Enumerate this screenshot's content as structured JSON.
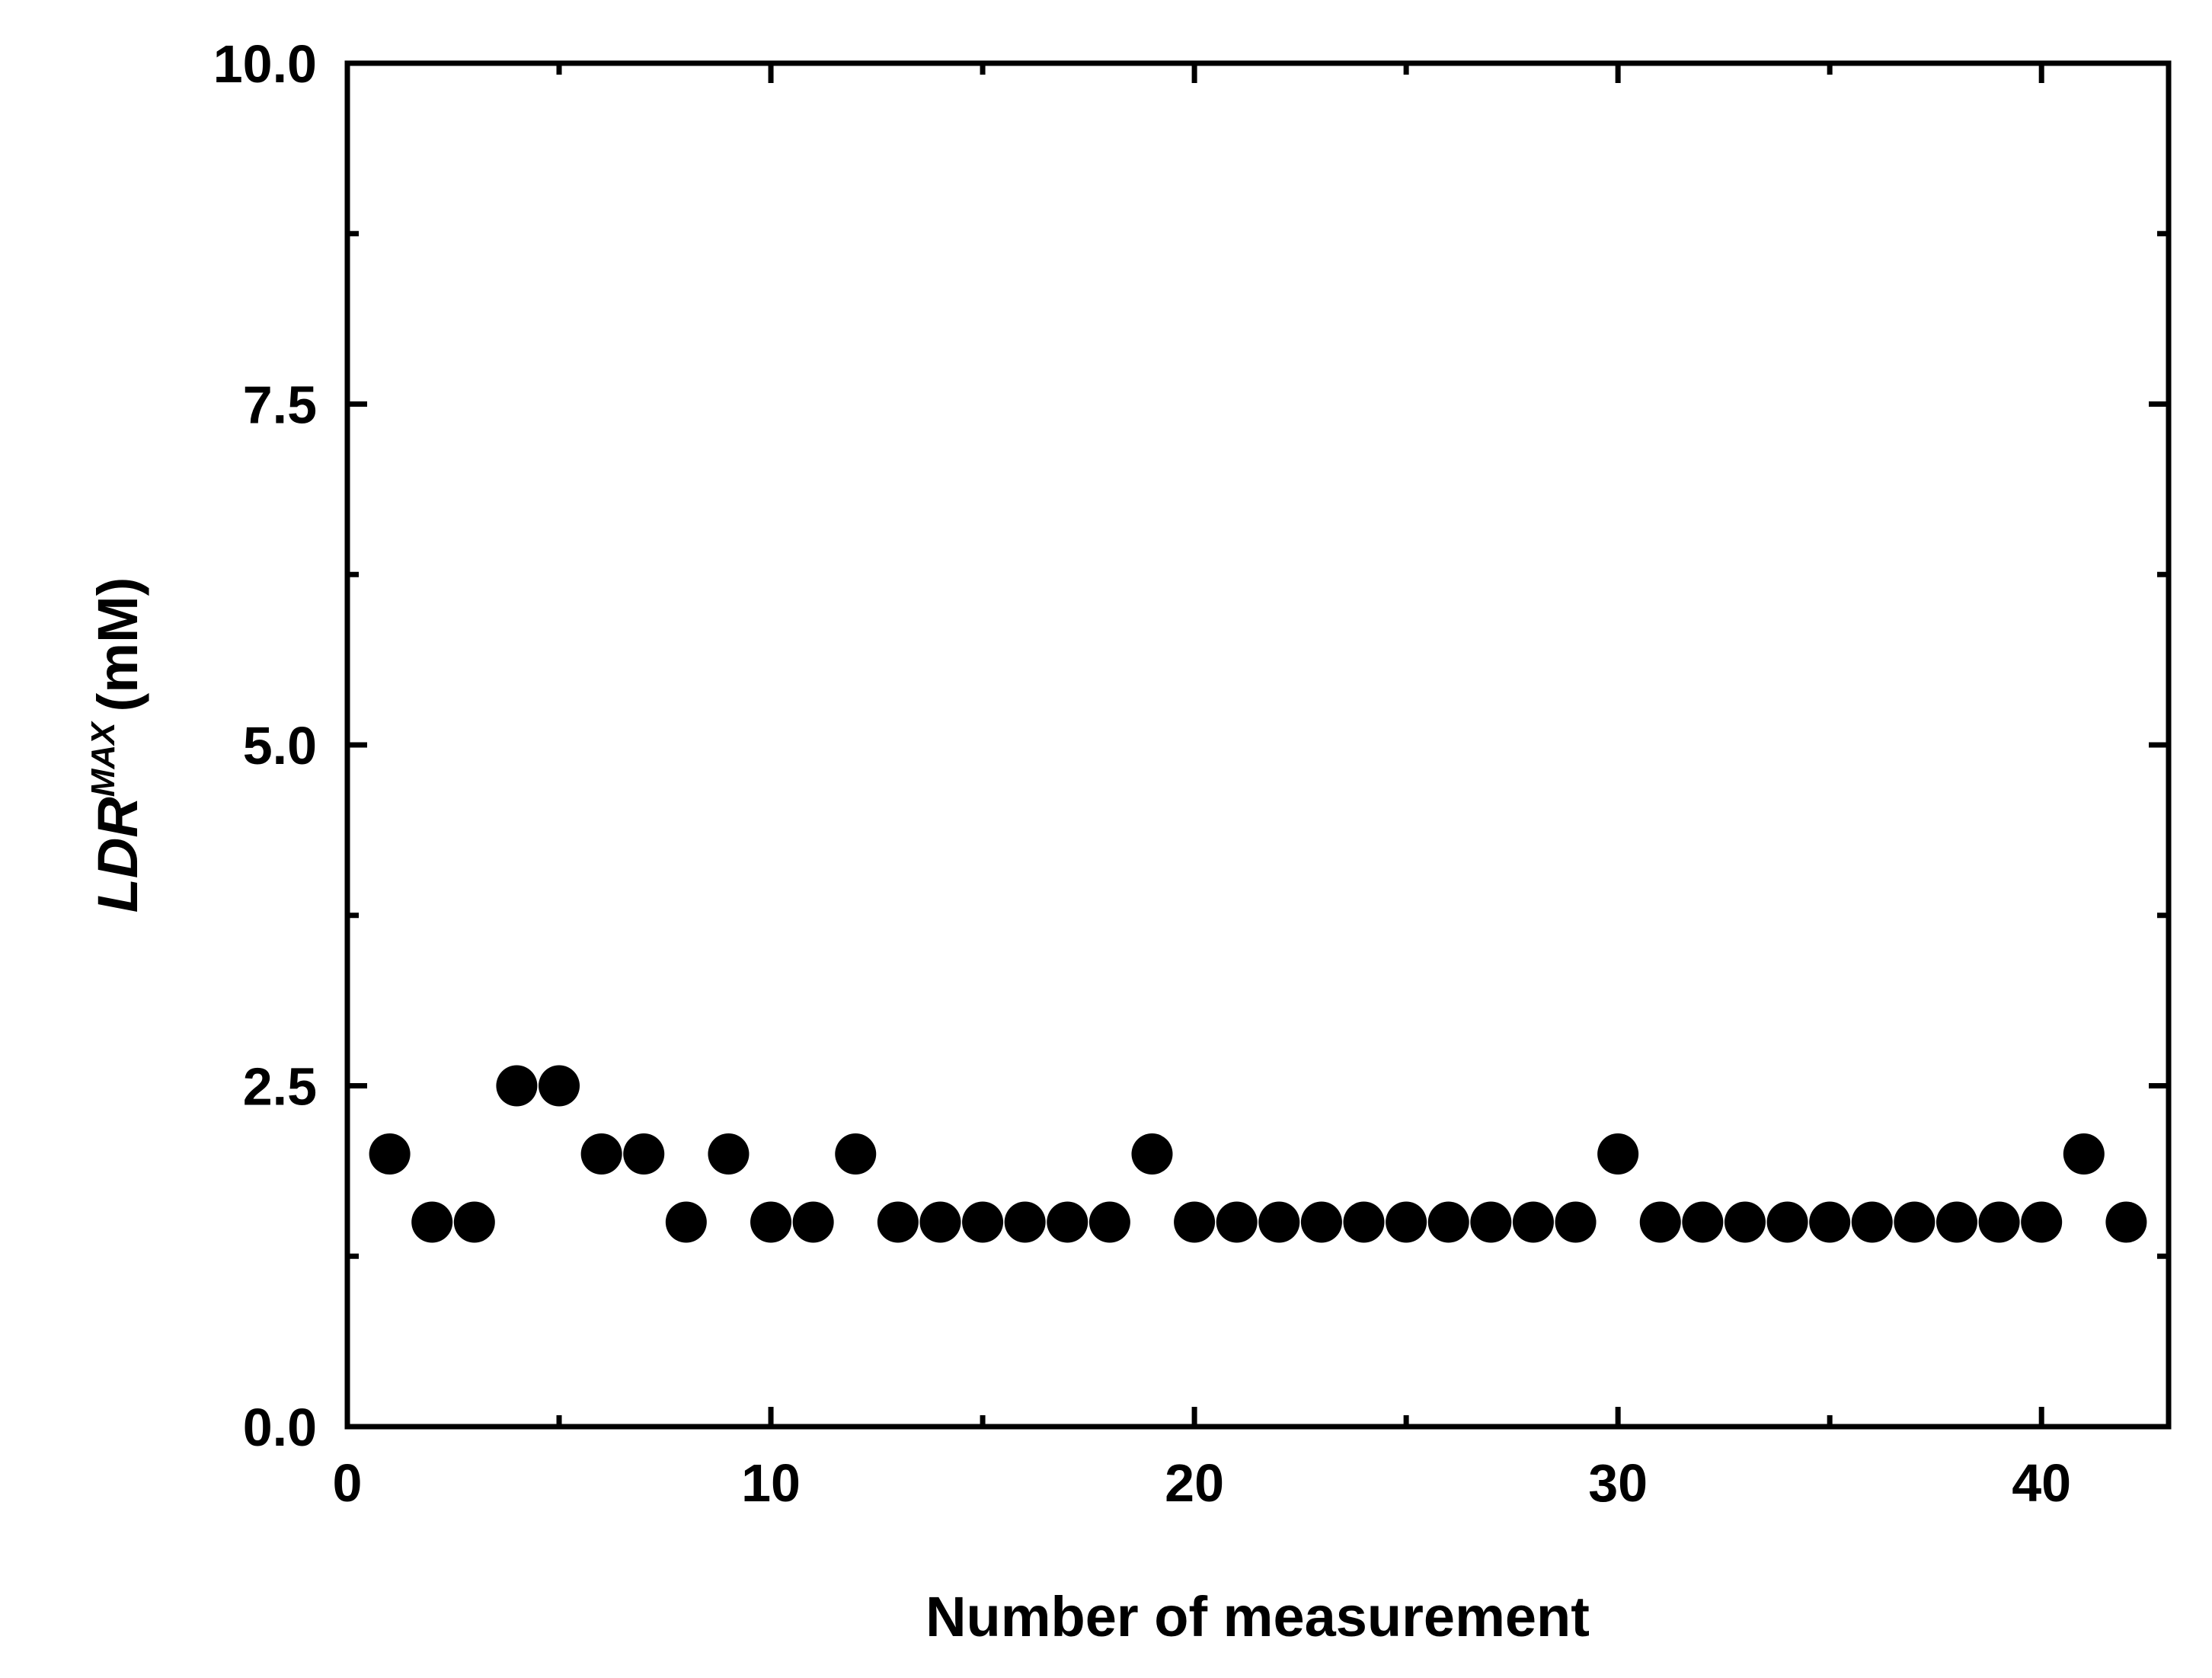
{
  "chart_data": {
    "type": "scatter",
    "xlabel": "Number of measurement",
    "ylabel": {
      "main": "LDR",
      "superscript": "MAX",
      "unit": "(mM)"
    },
    "xlim": [
      0,
      43
    ],
    "ylim": [
      0,
      10
    ],
    "x_ticks": [
      0,
      10,
      20,
      30,
      40
    ],
    "x_tick_labels": [
      "0",
      "10",
      "20",
      "30",
      "40"
    ],
    "x_minor_ticks": [
      5,
      15,
      25,
      35
    ],
    "y_ticks": [
      0,
      2.5,
      5,
      7.5,
      10
    ],
    "y_tick_labels": [
      "0.0",
      "2.5",
      "5.0",
      "7.5",
      "10.0"
    ],
    "y_minor_ticks": [
      1.25,
      3.75,
      6.25,
      8.75
    ],
    "grid": false,
    "marker_color": "#000000",
    "x": [
      1,
      2,
      3,
      4,
      5,
      6,
      7,
      8,
      9,
      10,
      11,
      12,
      13,
      14,
      15,
      16,
      17,
      18,
      19,
      20,
      21,
      22,
      23,
      24,
      25,
      26,
      27,
      28,
      29,
      30,
      31,
      32,
      33,
      34,
      35,
      36,
      37,
      38,
      39,
      40,
      41,
      42
    ],
    "y": [
      2,
      1.5,
      1.5,
      2.5,
      2.5,
      2,
      2,
      1.5,
      2,
      1.5,
      1.5,
      2,
      1.5,
      1.5,
      1.5,
      1.5,
      1.5,
      1.5,
      2,
      1.5,
      1.5,
      1.5,
      1.5,
      1.5,
      1.5,
      1.5,
      1.5,
      1.5,
      1.5,
      2,
      1.5,
      1.5,
      1.5,
      1.5,
      1.5,
      1.5,
      1.5,
      1.5,
      1.5,
      1.5,
      2,
      1.5
    ]
  }
}
